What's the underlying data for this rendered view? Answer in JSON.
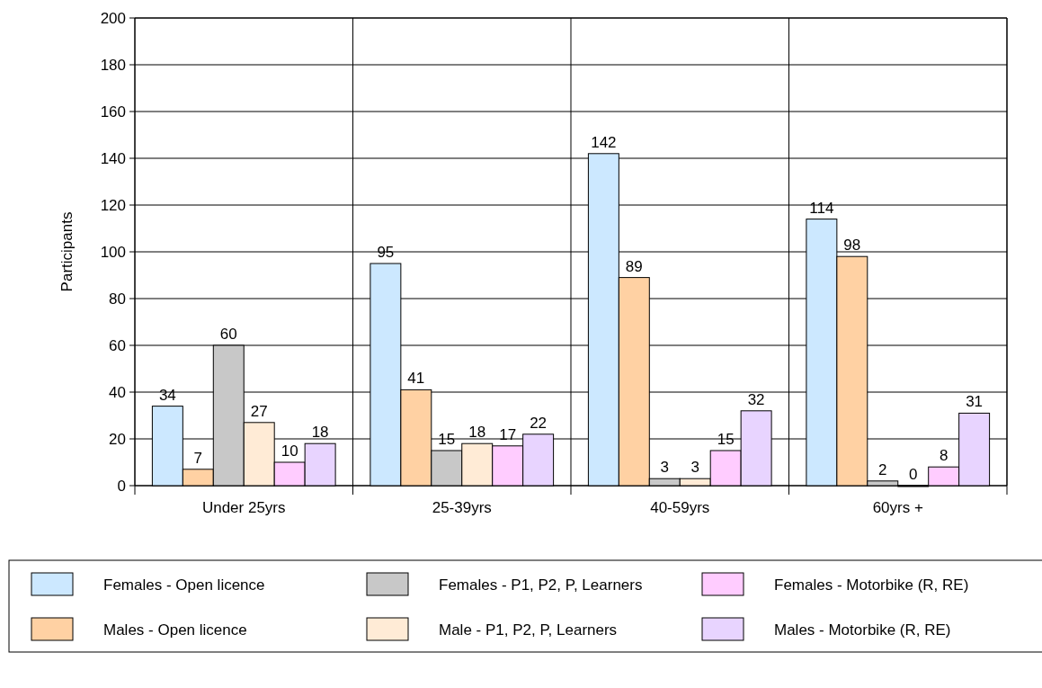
{
  "chart_data": {
    "type": "bar",
    "ylabel": "Participants",
    "categories": [
      "Under 25yrs",
      "25-39yrs",
      "40-59yrs",
      "60yrs +"
    ],
    "series": [
      {
        "name": "Females - Open licence",
        "color": "#cce8ff",
        "values": [
          34,
          95,
          142,
          114
        ]
      },
      {
        "name": "Males - Open licence",
        "color": "#ffd1a3",
        "values": [
          7,
          41,
          89,
          98
        ]
      },
      {
        "name": "Females - P1, P2, P, Learners",
        "color": "#c8c8c8",
        "values": [
          60,
          15,
          3,
          2
        ]
      },
      {
        "name": "Male - P1, P2, P, Learners",
        "color": "#ffebd6",
        "values": [
          27,
          18,
          3,
          0
        ]
      },
      {
        "name": "Females - Motorbike (R, RE)",
        "color": "#ffccff",
        "values": [
          10,
          17,
          15,
          8
        ]
      },
      {
        "name": "Males - Motorbike (R, RE)",
        "color": "#e8d4ff",
        "values": [
          18,
          22,
          32,
          31
        ]
      }
    ],
    "ylim": [
      0,
      200
    ],
    "yticks": [
      0,
      20,
      40,
      60,
      80,
      100,
      120,
      140,
      160,
      180,
      200
    ],
    "grid": true,
    "legend": "bottom",
    "data_labels": true
  }
}
